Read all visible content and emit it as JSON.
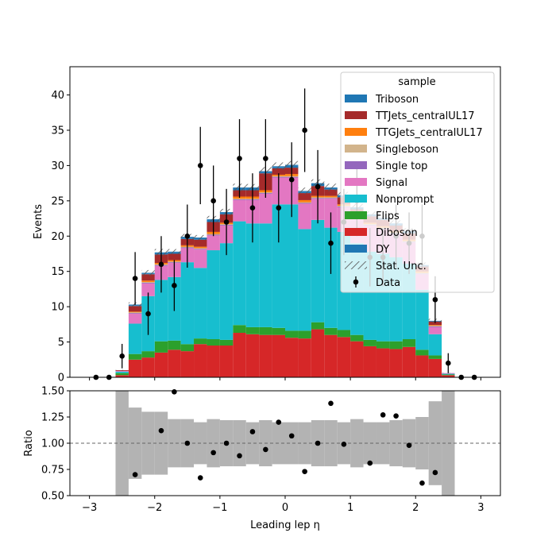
{
  "chart_data": {
    "type": "bar",
    "stacked": true,
    "main_panel": {
      "ylabel": "Events",
      "ylim": [
        0,
        44
      ],
      "yticks": [
        0,
        5,
        10,
        15,
        20,
        25,
        30,
        35,
        40
      ]
    },
    "ratio_panel": {
      "ylabel": "Ratio",
      "ylim": [
        0.5,
        1.5
      ],
      "yticks": [
        "0.50",
        "0.75",
        "1.00",
        "1.25",
        "1.50"
      ],
      "reference_line": 1.0
    },
    "xlabel": "Leading lep η",
    "xlim": [
      -3.3,
      3.3
    ],
    "xticks": [
      -3,
      -2,
      -1,
      0,
      1,
      2,
      3
    ],
    "bin_edges": [
      -3.0,
      -2.8,
      -2.6,
      -2.4,
      -2.2,
      -2.0,
      -1.8,
      -1.6,
      -1.4,
      -1.2,
      -1.0,
      -0.8,
      -0.6,
      -0.4,
      -0.2,
      0.0,
      0.2,
      0.4,
      0.6,
      0.8,
      1.0,
      1.2,
      1.4,
      1.6,
      1.8,
      2.0,
      2.2,
      2.4,
      2.6,
      2.8,
      3.0
    ],
    "legend": {
      "title": "sample",
      "position": "top-right"
    },
    "series": [
      {
        "name": "Diboson",
        "color": "#d62728",
        "values": [
          0,
          0,
          0.3,
          2.5,
          2.8,
          3.5,
          3.9,
          3.7,
          4.7,
          4.5,
          4.5,
          6.3,
          6.1,
          6.0,
          6.0,
          5.6,
          5.5,
          6.8,
          6.0,
          5.7,
          5.1,
          4.4,
          4.1,
          4.0,
          4.3,
          3.1,
          2.6,
          0.3,
          0,
          0
        ]
      },
      {
        "name": "Flips",
        "color": "#2ca02c",
        "values": [
          0,
          0,
          0.3,
          0.8,
          0.9,
          1.6,
          1.3,
          1.0,
          0.8,
          0.9,
          0.8,
          1.1,
          1.0,
          1.1,
          1.0,
          1.0,
          1.1,
          1.0,
          1.0,
          1.0,
          0.9,
          0.9,
          1.0,
          1.1,
          1.1,
          0.8,
          0.5,
          0.1,
          0,
          0
        ]
      },
      {
        "name": "Nonprompt",
        "color": "#17becf",
        "values": [
          0,
          0,
          0.2,
          4.3,
          7.8,
          8.7,
          9.0,
          11.6,
          10.0,
          12.6,
          13.7,
          14.7,
          14.7,
          14.7,
          17.5,
          17.9,
          14.4,
          14.5,
          14.2,
          13.9,
          13.0,
          12.5,
          12.4,
          11.9,
          10.7,
          8.5,
          3.0,
          0.1,
          0,
          0
        ]
      },
      {
        "name": "Signal",
        "color": "#e377c2",
        "values": [
          0,
          0,
          0.1,
          1.4,
          1.8,
          2.0,
          2.0,
          2.0,
          2.6,
          2.1,
          2.5,
          3.0,
          3.3,
          4.2,
          3.8,
          3.8,
          3.6,
          3.0,
          4.1,
          3.5,
          3.6,
          3.7,
          3.5,
          3.3,
          3.0,
          2.2,
          1.0,
          0.1,
          0,
          0
        ]
      },
      {
        "name": "Single top",
        "color": "#9467bd",
        "values": [
          0,
          0,
          0,
          0.1,
          0.1,
          0.1,
          0.1,
          0.1,
          0.1,
          0.1,
          0.1,
          0.1,
          0.1,
          0.1,
          0.1,
          0.1,
          0.1,
          0.1,
          0.1,
          0.1,
          0.1,
          0.1,
          0.1,
          0.1,
          0.1,
          0.1,
          0.1,
          0,
          0,
          0
        ]
      },
      {
        "name": "Singleboson",
        "color": "#d2b48c",
        "values": [
          0,
          0,
          0,
          0.1,
          0.1,
          0.1,
          0.1,
          0.1,
          0.1,
          0.1,
          0.1,
          0.1,
          0.1,
          0.1,
          0.1,
          0.1,
          0.1,
          0.1,
          0.1,
          0.1,
          0.1,
          0.1,
          0.1,
          0.1,
          0.1,
          0.1,
          0.1,
          0,
          0,
          0
        ]
      },
      {
        "name": "TTGJets_centralUL17",
        "color": "#ff7f0e",
        "values": [
          0,
          0,
          0,
          0.1,
          0.2,
          0.2,
          0.2,
          0.2,
          0.2,
          0.3,
          0.2,
          0.3,
          0.3,
          0.3,
          0.2,
          0.3,
          0.3,
          0.2,
          0.2,
          0.2,
          0.2,
          0.2,
          0.2,
          0.2,
          0.2,
          0.2,
          0.1,
          0,
          0,
          0
        ]
      },
      {
        "name": "TTJets_centralUL17",
        "color": "#a52a2a",
        "values": [
          0,
          0,
          0.1,
          0.8,
          0.9,
          1.2,
          0.9,
          0.9,
          1.0,
          1.4,
          1.2,
          0.9,
          0.9,
          2.4,
          0.9,
          0.9,
          1.0,
          1.4,
          0.9,
          1.0,
          0.8,
          0.9,
          0.9,
          0.8,
          0.9,
          0.7,
          0.5,
          0,
          0,
          0
        ]
      },
      {
        "name": "Triboson",
        "color": "#1f77b4",
        "values": [
          0,
          0,
          0,
          0.1,
          0.1,
          0.2,
          0.2,
          0.2,
          0.2,
          0.3,
          0.2,
          0.3,
          0.3,
          0.2,
          0.2,
          0.3,
          0.2,
          0.3,
          0.2,
          0.2,
          0.2,
          0.2,
          0.2,
          0.2,
          0.2,
          0.1,
          0.1,
          0,
          0,
          0
        ]
      },
      {
        "name": "DY",
        "color": "#1f77b4",
        "values": [
          0,
          0,
          0,
          0.1,
          0.1,
          0.1,
          0.1,
          0.1,
          0.1,
          0.1,
          0.1,
          0.1,
          0.1,
          0.1,
          0.1,
          0.1,
          0.1,
          0.1,
          0.1,
          0.1,
          0.1,
          0.1,
          0.1,
          0.1,
          0.1,
          0.1,
          0,
          0,
          0,
          0
        ]
      }
    ],
    "legend_order": [
      "Triboson",
      "TTJets_centralUL17",
      "TTGJets_centralUL17",
      "Singleboson",
      "Single top",
      "Signal",
      "Nonprompt",
      "Flips",
      "Diboson",
      "DY",
      "Stat. Unc.",
      "Data"
    ],
    "stat_unc_label": "Stat. Unc.",
    "stat_unc_rel": [
      0,
      0,
      0.5,
      0.34,
      0.3,
      0.3,
      0.23,
      0.23,
      0.2,
      0.23,
      0.22,
      0.22,
      0.2,
      0.22,
      0.2,
      0.2,
      0.2,
      0.22,
      0.22,
      0.2,
      0.23,
      0.2,
      0.2,
      0.22,
      0.23,
      0.25,
      0.4,
      0.5,
      0,
      0
    ],
    "data_label": "Data",
    "data": {
      "x": [
        -2.9,
        -2.7,
        -2.5,
        -2.3,
        -2.1,
        -1.9,
        -1.7,
        -1.5,
        -1.3,
        -1.1,
        -0.9,
        -0.7,
        -0.5,
        -0.3,
        -0.1,
        0.1,
        0.3,
        0.5,
        0.7,
        0.9,
        1.1,
        1.3,
        1.5,
        1.7,
        1.9,
        2.1,
        2.3,
        2.5,
        2.7,
        2.9
      ],
      "y": [
        0,
        0,
        3,
        14,
        9,
        16,
        13,
        20,
        30,
        25,
        22,
        31,
        24,
        31,
        24,
        28,
        35,
        27,
        19,
        22,
        25,
        17,
        17,
        20,
        19,
        20,
        11,
        2,
        0,
        0
      ],
      "ratio": [
        null,
        null,
        null,
        0.7,
        null,
        1.12,
        1.49,
        1.0,
        0.67,
        0.91,
        1.0,
        0.88,
        1.11,
        0.94,
        1.2,
        1.07,
        0.73,
        1.0,
        1.38,
        0.99,
        null,
        0.81,
        1.27,
        1.26,
        0.98,
        0.62,
        0.72,
        null,
        null,
        null
      ]
    }
  }
}
